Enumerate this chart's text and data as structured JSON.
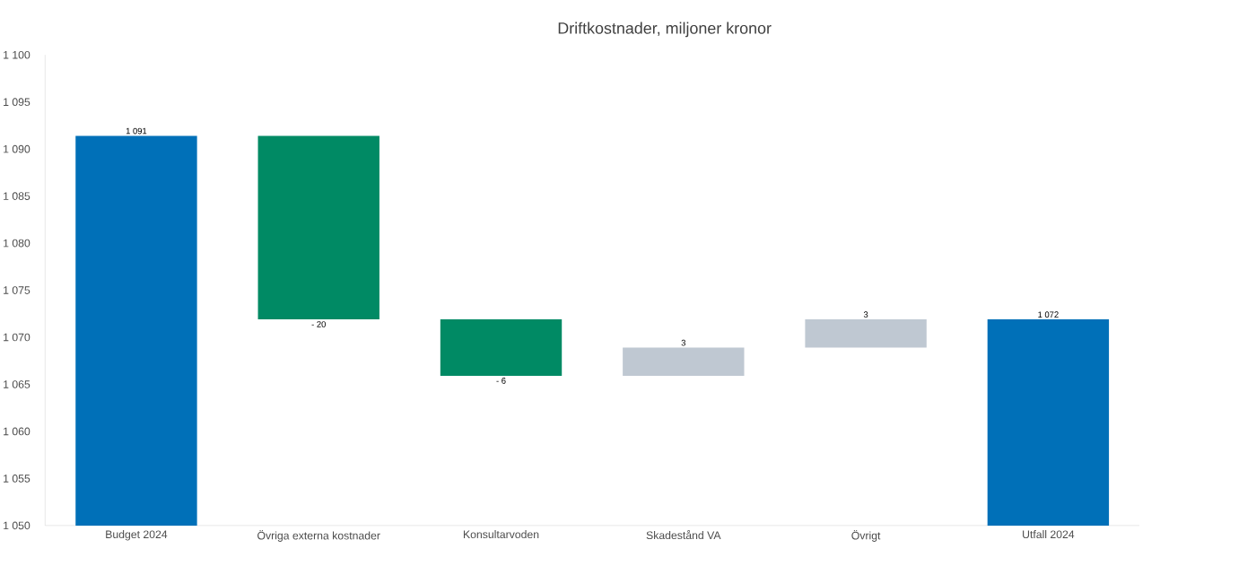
{
  "chart_data": {
    "type": "bar",
    "title": "Driftkostnader, miljoner kronor",
    "categories": [
      "Budget 2024",
      "Övriga externa kostnader",
      "Konsultarvoden",
      "Skadestånd VA",
      "Övrigt",
      "Utfall 2024"
    ],
    "values": [
      1091.4,
      -19.5,
      -6,
      3,
      3,
      1071.9
    ],
    "base": [
      null,
      1091.4,
      1071.9,
      1065.9,
      1068.9,
      null
    ],
    "colors": [
      "#0070b8",
      "#008a64",
      "#008a64",
      "#bfc8d2",
      "#bfc8d2",
      "#0070b8"
    ],
    "value_labels": [
      "1 091",
      "- 20",
      "- 6",
      "3",
      "3",
      "1 072"
    ],
    "ylim": [
      1050,
      1100
    ],
    "yticks": [
      {
        "value": 1050,
        "label": "1 050"
      },
      {
        "value": 1055,
        "label": "1 055"
      },
      {
        "value": 1060,
        "label": "1 060"
      },
      {
        "value": 1065,
        "label": "1 065"
      },
      {
        "value": 1070,
        "label": "1 070"
      },
      {
        "value": 1075,
        "label": "1 075"
      },
      {
        "value": 1080,
        "label": "1 080"
      },
      {
        "value": 1085,
        "label": "1 085"
      },
      {
        "value": 1090,
        "label": "1 090"
      },
      {
        "value": 1095,
        "label": "1 095"
      },
      {
        "value": 1100,
        "label": "1 100"
      }
    ]
  }
}
